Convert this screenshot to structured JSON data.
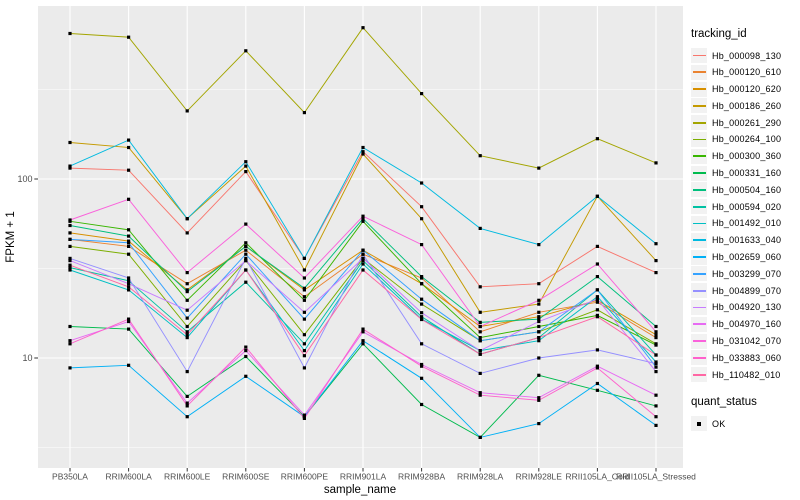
{
  "colors": {
    "page_bg": "#FFFFFF",
    "panel_bg": "#EBEBEB",
    "grid_major": "#FFFFFF",
    "grid_minor": "#FFFFFF",
    "tick_mark": "#333333",
    "tick_label": "#4D4D4D",
    "axis_title": "#000000",
    "legend_key_bg": "#F2F2F2",
    "point_color": "#000000"
  },
  "chart_data": {
    "type": "line",
    "title": "",
    "xlabel": "sample_name",
    "ylabel": "FPKM + 1",
    "y_scale": "log10",
    "ylim": [
      2.3,
      930
    ],
    "yticks": [
      10,
      100
    ],
    "y_minor_gridlines": [
      3.162,
      31.62,
      316.2
    ],
    "grid": "white major and minor gridlines on grey panel",
    "legend_position": "right",
    "point_marker": "small black square",
    "legend": {
      "tracking_title": "tracking_id",
      "quant_title": "quant_status",
      "quant_items": [
        {
          "label": "OK",
          "marker": "black-square"
        }
      ]
    },
    "categories": [
      "PB350LA",
      "RRIM600LA",
      "RRIM600LE",
      "RRIM600SE",
      "RRIM600PE",
      "RRIM901LA",
      "RRIM928BA",
      "RRIM928LA",
      "RRIM928LE",
      "RRII105LA_Cold",
      "RRII105LA_Stressed"
    ],
    "series": [
      {
        "name": "Hb_000098_130",
        "color": "#F8766D",
        "values": [
          115,
          112,
          50,
          110,
          36,
          142,
          70,
          25,
          26,
          42,
          30
        ]
      },
      {
        "name": "Hb_000120_610",
        "color": "#EA8331",
        "values": [
          46,
          42,
          26,
          40,
          22,
          38,
          28,
          14,
          18,
          20.5,
          13
        ]
      },
      {
        "name": "Hb_000120_620",
        "color": "#D89000",
        "values": [
          50,
          45,
          24,
          42,
          24,
          40,
          26,
          15,
          17,
          21,
          13.5
        ]
      },
      {
        "name": "Hb_000186_260",
        "color": "#C49A00",
        "values": [
          160,
          150,
          60,
          118,
          31,
          138,
          60,
          18,
          20,
          80,
          35
        ]
      },
      {
        "name": "Hb_000261_290",
        "color": "#A3A500",
        "values": [
          650,
          620,
          240,
          520,
          235,
          700,
          300,
          135,
          115,
          168,
          123
        ]
      },
      {
        "name": "Hb_000264_100",
        "color": "#7CAE00",
        "values": [
          42,
          38,
          15,
          35,
          13.5,
          36,
          20,
          12.5,
          14,
          18.6,
          12
        ]
      },
      {
        "name": "Hb_000300_360",
        "color": "#39B600",
        "values": [
          58,
          52,
          21,
          44,
          21,
          58,
          26,
          13,
          15,
          17.3,
          11.8
        ]
      },
      {
        "name": "Hb_000331_160",
        "color": "#00BB4E",
        "values": [
          15,
          14.5,
          6.1,
          10.2,
          4.7,
          12,
          5.5,
          3.6,
          8,
          6.6,
          5.4
        ]
      },
      {
        "name": "Hb_000504_160",
        "color": "#00BF7D",
        "values": [
          55,
          48,
          23.5,
          42,
          24.5,
          60,
          28.5,
          15.8,
          16.5,
          28.5,
          15
        ]
      },
      {
        "name": "Hb_000594_020",
        "color": "#00C1A3",
        "values": [
          32,
          27,
          14,
          26.5,
          12,
          35,
          17,
          10.5,
          13,
          24,
          10.4
        ]
      },
      {
        "name": "Hb_001492_010",
        "color": "#00BFC4",
        "values": [
          31,
          24,
          13,
          31,
          11,
          33.5,
          16.5,
          11,
          12.5,
          22,
          9.5
        ]
      },
      {
        "name": "Hb_001633_040",
        "color": "#00BAE0",
        "values": [
          118,
          165,
          60,
          125,
          36,
          150,
          95,
          53,
          43,
          80,
          43.5
        ]
      },
      {
        "name": "Hb_002659_060",
        "color": "#00B0F6",
        "values": [
          8.8,
          9.1,
          4.7,
          7.9,
          4.7,
          12.5,
          7.7,
          3.6,
          4.3,
          7.2,
          4.2
        ]
      },
      {
        "name": "Hb_003299_070",
        "color": "#35A2FF",
        "values": [
          46,
          44,
          16.7,
          38,
          16.5,
          40,
          21.3,
          12.5,
          14,
          24,
          8.9
        ]
      },
      {
        "name": "Hb_004899_070",
        "color": "#9590FF",
        "values": [
          36,
          28,
          8.4,
          36,
          8.8,
          38,
          12,
          8.2,
          10,
          11.1,
          9.3
        ]
      },
      {
        "name": "Hb_004920_130",
        "color": "#C77CFF",
        "values": [
          35,
          26,
          18.5,
          35,
          18,
          36,
          17.9,
          11,
          16,
          21.3,
          8.4
        ]
      },
      {
        "name": "Hb_004970_160",
        "color": "#E76BF3",
        "values": [
          12.5,
          16,
          5.6,
          11,
          4.8,
          14,
          9.2,
          6.4,
          6,
          9,
          6.2
        ]
      },
      {
        "name": "Hb_031042_070",
        "color": "#FA62DB",
        "values": [
          59,
          77,
          30,
          56,
          28,
          62,
          43,
          15,
          21,
          33.5,
          14
        ]
      },
      {
        "name": "Hb_033883_060",
        "color": "#FF61CC",
        "values": [
          12,
          16.5,
          5.4,
          11.5,
          4.6,
          14.5,
          9,
          6.2,
          5.8,
          8.8,
          4.7
        ]
      },
      {
        "name": "Hb_110482_010",
        "color": "#FF67A4",
        "values": [
          33,
          25,
          13.5,
          31,
          10.3,
          31,
          16.4,
          10.5,
          13,
          17,
          10.4
        ]
      }
    ]
  }
}
